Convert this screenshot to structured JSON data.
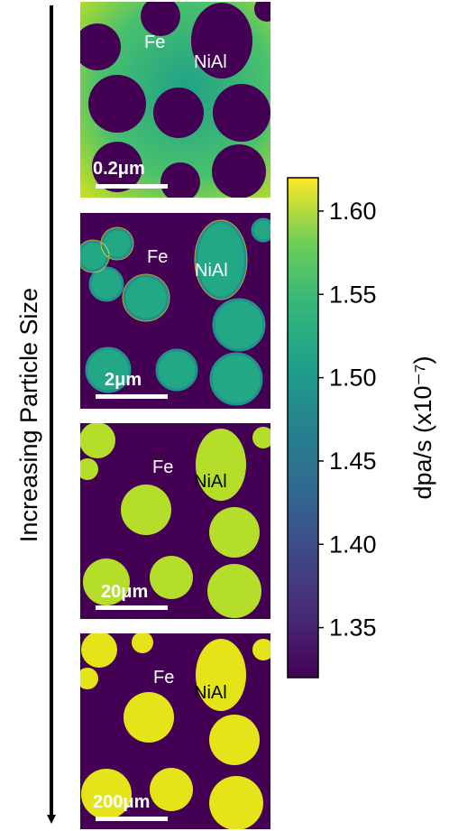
{
  "side_label": "Increasing Particle Size",
  "chart_data": {
    "type": "heatmap",
    "panels": [
      {
        "scale_bar": "0.2μm",
        "label_fe": "Fe",
        "label_nial": "NiAl"
      },
      {
        "scale_bar": "2μm",
        "label_fe": "Fe",
        "label_nial": "NiAl"
      },
      {
        "scale_bar": "20μm",
        "label_fe": "Fe",
        "label_nial": "NiAl"
      },
      {
        "scale_bar": "200μm",
        "label_fe": "Fe",
        "label_nial": "NiAl"
      }
    ],
    "colorbar": {
      "label": "dpa/s (x10⁻⁷)",
      "ticks": [
        "1.35",
        "1.40",
        "1.45",
        "1.50",
        "1.55",
        "1.60"
      ],
      "tick_values": [
        1.35,
        1.4,
        1.45,
        1.5,
        1.55,
        1.6
      ],
      "vmin": 1.32,
      "vmax": 1.62,
      "colormap": "viridis"
    }
  },
  "colors": {
    "particle": "#440154",
    "panel3_matrix": "#b5de2b",
    "panel4_matrix": "#e4e418"
  }
}
